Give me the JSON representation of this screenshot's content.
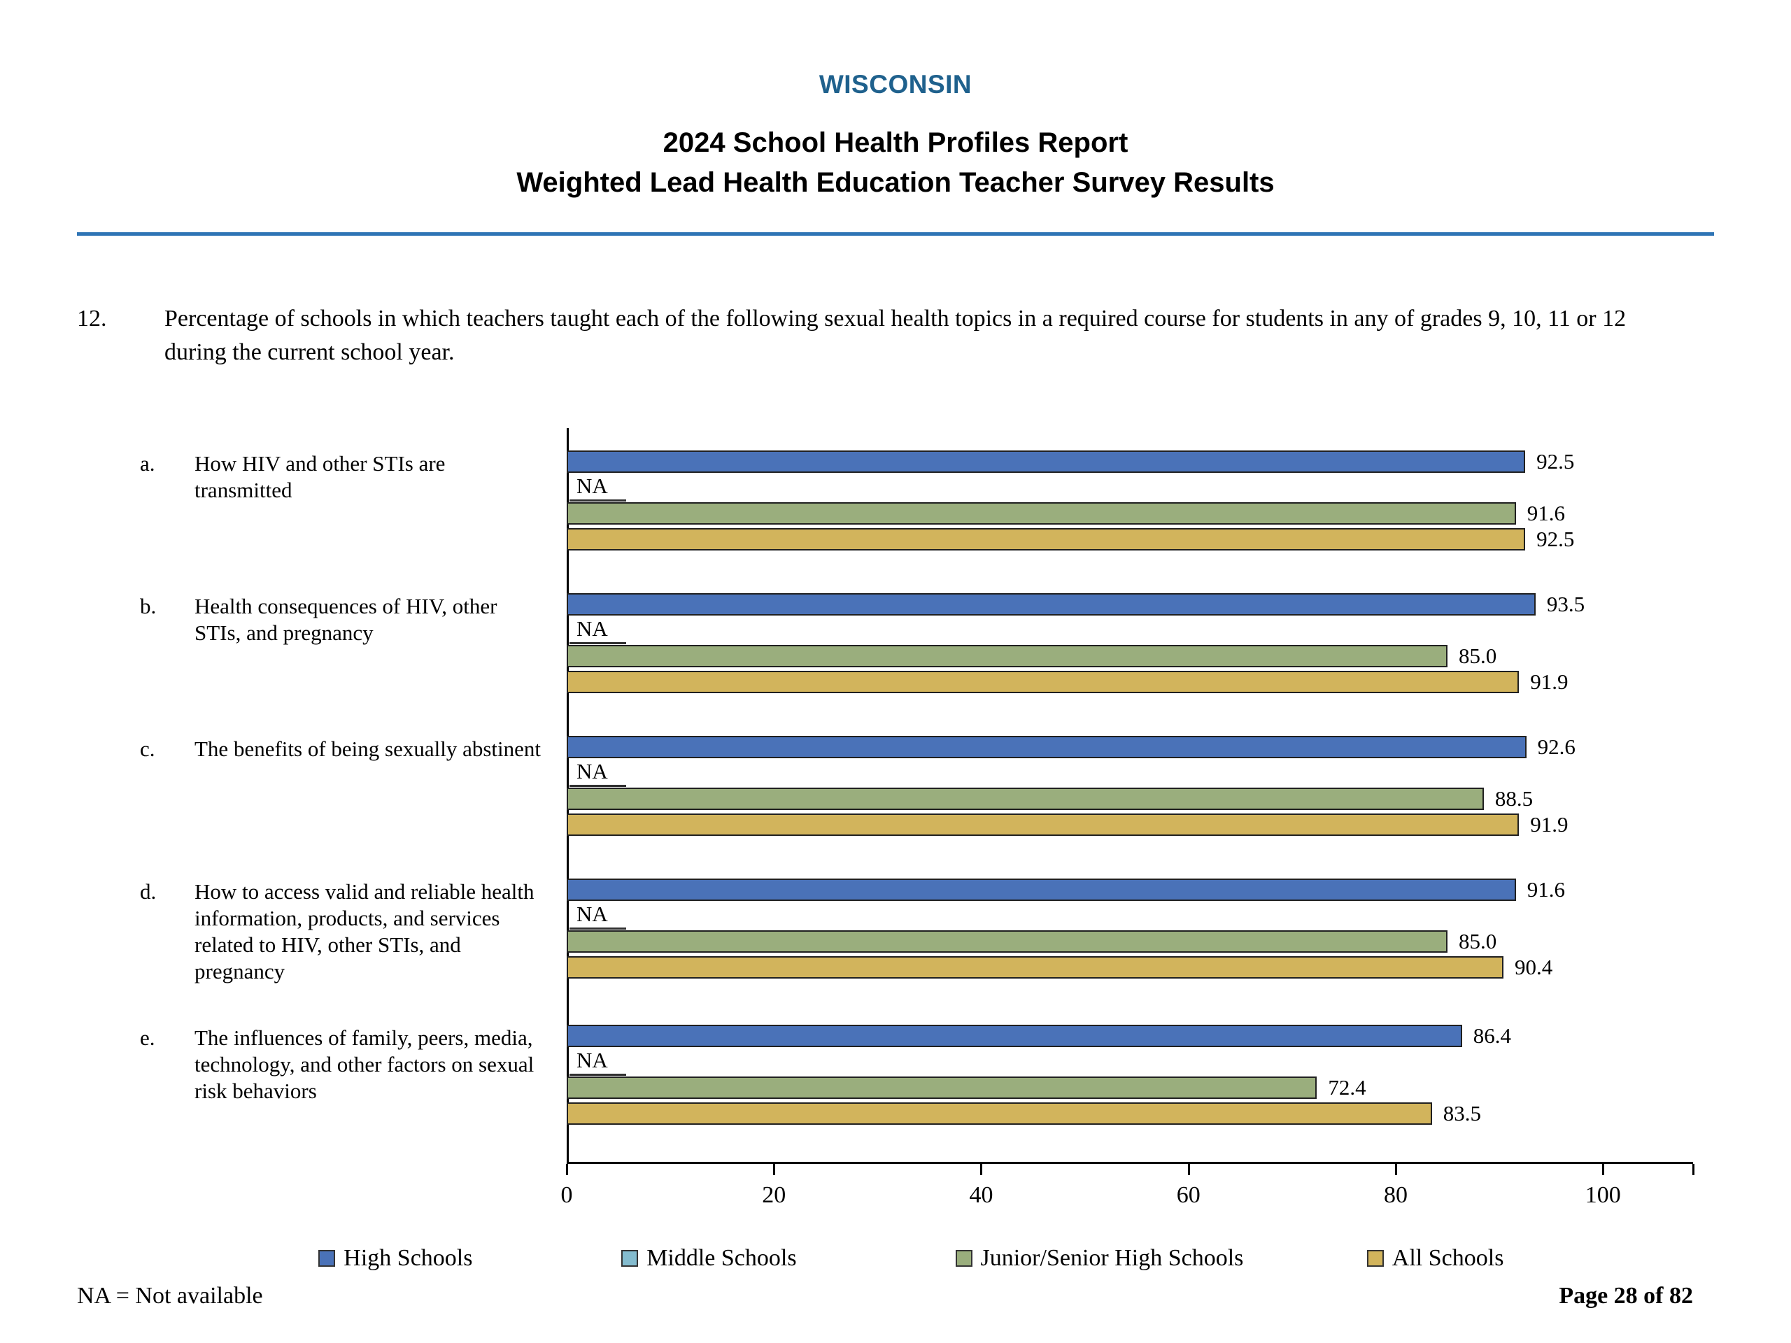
{
  "header": {
    "state": "WISCONSIN",
    "title_line1": "2024 School Health Profiles Report",
    "title_line2": "Weighted Lead Health Education Teacher Survey Results"
  },
  "question": {
    "number": "12.",
    "text": "Percentage of schools in which teachers taught each of the following sexual health topics in a required course for students in any of grades 9, 10, 11 or 12 during the current school year."
  },
  "chart_data": {
    "type": "bar",
    "orientation": "horizontal",
    "title": "",
    "xlabel": "",
    "ylabel": "",
    "xlim": [
      0,
      100
    ],
    "x_ticks": [
      0,
      20,
      40,
      60,
      80,
      100
    ],
    "grid": false,
    "legend_position": "bottom",
    "na_label": "NA",
    "series": [
      {
        "key": "high_schools",
        "label": "High Schools",
        "color": "#4a72b8"
      },
      {
        "key": "middle_schools",
        "label": "Middle Schools",
        "color": "#84bccf"
      },
      {
        "key": "junior_senior_high_schools",
        "label": "Junior/Senior High Schools",
        "color": "#9aae7d"
      },
      {
        "key": "all_schools",
        "label": "All Schools",
        "color": "#d2b45c"
      }
    ],
    "groups": [
      {
        "letter": "a.",
        "label": "How HIV and other STIs are transmitted",
        "values": {
          "high_schools": 92.5,
          "middle_schools": null,
          "junior_senior_high_schools": 91.6,
          "all_schools": 92.5
        }
      },
      {
        "letter": "b.",
        "label": "Health consequences of HIV, other STIs, and pregnancy",
        "values": {
          "high_schools": 93.5,
          "middle_schools": null,
          "junior_senior_high_schools": 85.0,
          "all_schools": 91.9
        }
      },
      {
        "letter": "c.",
        "label": "The benefits of being sexually abstinent",
        "values": {
          "high_schools": 92.6,
          "middle_schools": null,
          "junior_senior_high_schools": 88.5,
          "all_schools": 91.9
        }
      },
      {
        "letter": "d.",
        "label": "How to access valid and reliable health information, products, and services related to HIV, other STIs, and pregnancy",
        "values": {
          "high_schools": 91.6,
          "middle_schools": null,
          "junior_senior_high_schools": 85.0,
          "all_schools": 90.4
        }
      },
      {
        "letter": "e.",
        "label": "The influences of family, peers, media, technology, and other factors on sexual risk behaviors",
        "values": {
          "high_schools": 86.4,
          "middle_schools": null,
          "junior_senior_high_schools": 72.4,
          "all_schools": 83.5
        }
      }
    ]
  },
  "footer": {
    "na_note": "NA = Not available",
    "page": "Page 28 of 82"
  },
  "colors": {
    "heading_accent": "#1f618d",
    "rule": "#2e74b5"
  }
}
